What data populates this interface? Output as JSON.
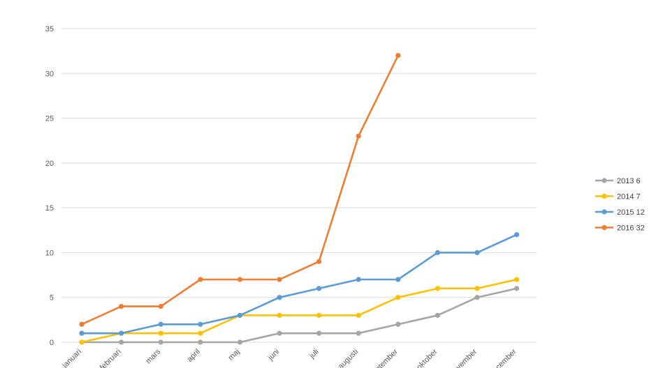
{
  "chart_data": {
    "type": "line",
    "title": "",
    "xlabel": "",
    "ylabel": "",
    "ylim": [
      0,
      35
    ],
    "yticks": [
      0,
      5,
      10,
      15,
      20,
      25,
      30,
      35
    ],
    "grid": true,
    "legend_position": "right",
    "categories": [
      "januari",
      "februari",
      "mars",
      "april",
      "maj",
      "juni",
      "juli",
      "augusti",
      "september",
      "oktober",
      "november",
      "december"
    ],
    "series": [
      {
        "name": "2013 6",
        "color": "#a5a5a5",
        "values": [
          0,
          0,
          0,
          0,
          0,
          1,
          1,
          1,
          2,
          3,
          5,
          6
        ]
      },
      {
        "name": "2014 7",
        "color": "#ffc000",
        "values": [
          0,
          1,
          1,
          1,
          3,
          3,
          3,
          3,
          5,
          6,
          6,
          7
        ]
      },
      {
        "name": "2015 12",
        "color": "#5b9bd5",
        "values": [
          1,
          1,
          2,
          2,
          3,
          5,
          6,
          7,
          7,
          10,
          10,
          12
        ]
      },
      {
        "name": "2016 32",
        "color": "#ed7d31",
        "values": [
          2,
          4,
          4,
          7,
          7,
          7,
          9,
          23,
          32,
          null,
          null,
          null
        ]
      }
    ]
  }
}
